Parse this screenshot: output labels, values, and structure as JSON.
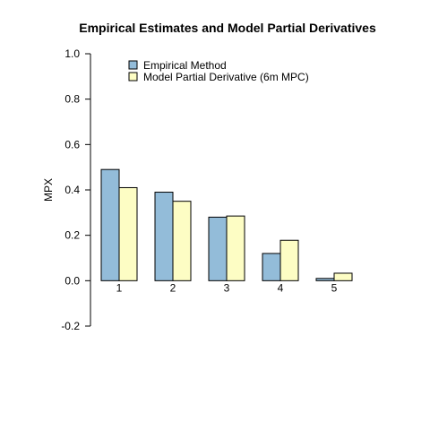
{
  "chart_data": {
    "type": "bar",
    "title": "Empirical Estimates and Model Partial Derivatives",
    "xlabel": "",
    "ylabel": "MPX",
    "ylim": [
      -0.2,
      1.0
    ],
    "yticks": [
      "-0.2",
      "0.0",
      "0.2",
      "0.4",
      "0.6",
      "0.8",
      "1.0"
    ],
    "categories": [
      "1",
      "2",
      "3",
      "4",
      "5"
    ],
    "grid": false,
    "legend_position": "top-left",
    "series": [
      {
        "name": "Empirical Method",
        "color": "#93bcd9",
        "values": [
          0.49,
          0.39,
          0.28,
          0.12,
          0.01
        ]
      },
      {
        "name": "Model Partial Derivative (6m MPC)",
        "color": "#fdfdc4",
        "values": [
          0.41,
          0.35,
          0.285,
          0.178,
          0.033
        ]
      }
    ]
  }
}
